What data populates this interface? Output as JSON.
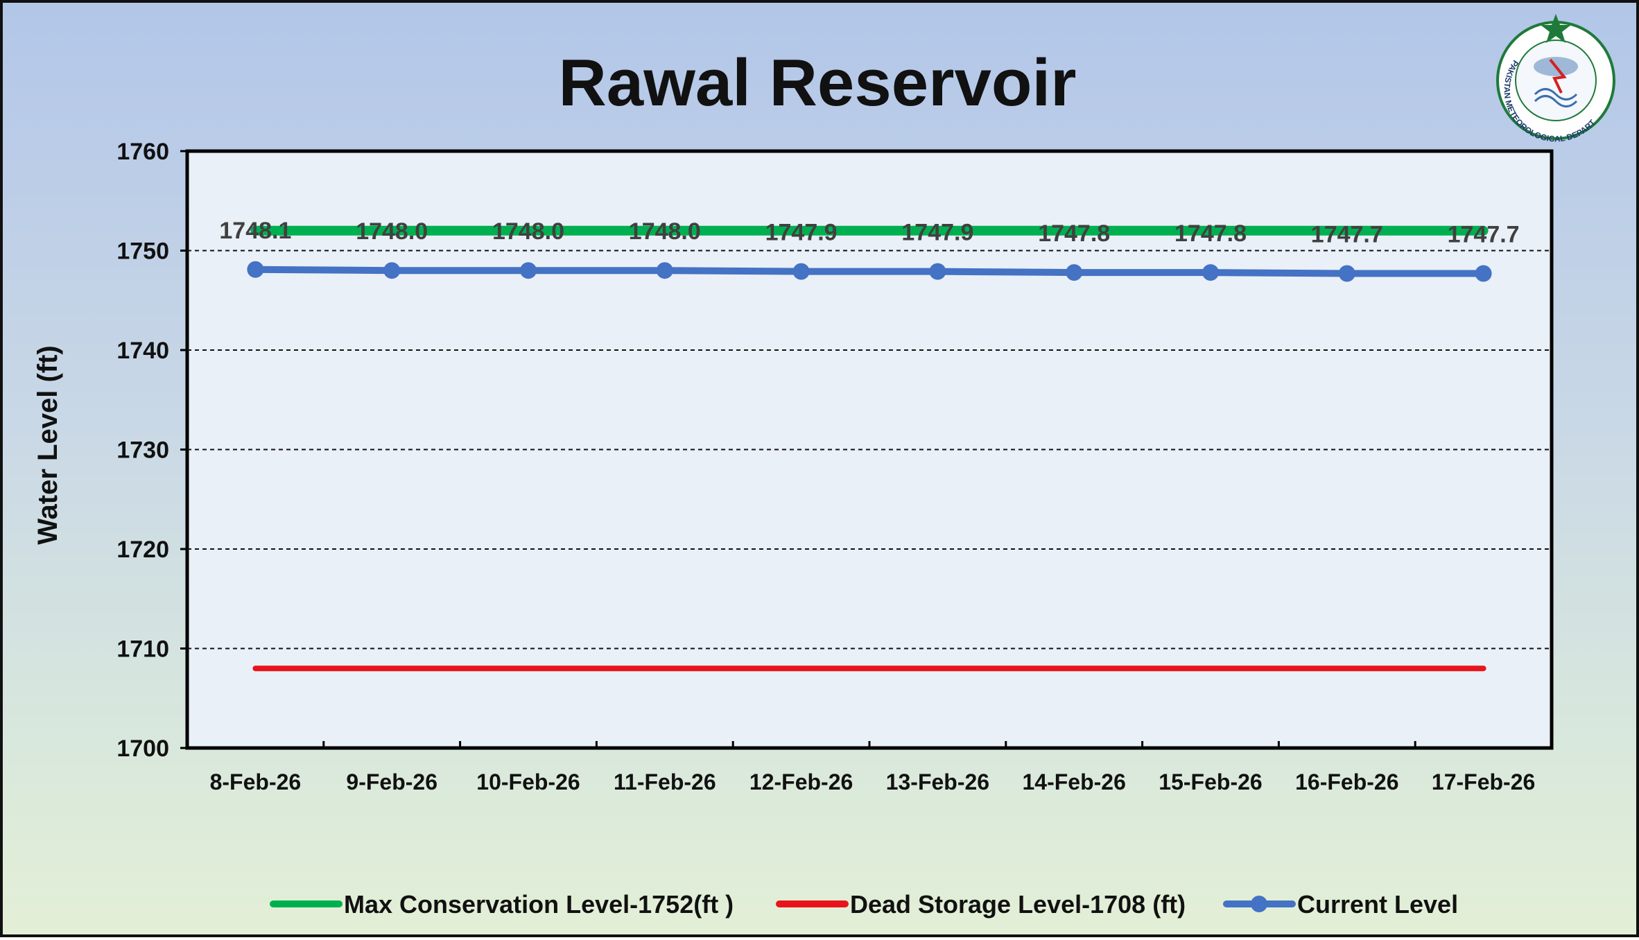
{
  "chart_data": {
    "type": "line",
    "title": "Rawal Reservoir",
    "ylabel": "Water Level (ft)",
    "xlabel": "",
    "ylim": [
      1700,
      1760
    ],
    "yticks": [
      1700,
      1710,
      1720,
      1730,
      1740,
      1750,
      1760
    ],
    "categories": [
      "8-Feb-26",
      "9-Feb-26",
      "10-Feb-26",
      "11-Feb-26",
      "12-Feb-26",
      "13-Feb-26",
      "14-Feb-26",
      "15-Feb-26",
      "16-Feb-26",
      "17-Feb-26"
    ],
    "grid": "horizontal dashed",
    "legend_position": "bottom",
    "series": [
      {
        "name": "Max Conservation Level-1752(ft )",
        "values": [
          1752,
          1752,
          1752,
          1752,
          1752,
          1752,
          1752,
          1752,
          1752,
          1752
        ],
        "color": "#00b050"
      },
      {
        "name": "Dead Storage Level-1708 (ft)",
        "values": [
          1708,
          1708,
          1708,
          1708,
          1708,
          1708,
          1708,
          1708,
          1708,
          1708
        ],
        "color": "#e8141b"
      },
      {
        "name": "Current Level",
        "values": [
          1748.1,
          1748.0,
          1748.0,
          1748.0,
          1747.9,
          1747.9,
          1747.8,
          1747.8,
          1747.7,
          1747.7
        ],
        "color": "#4472c4",
        "markers": "circle"
      }
    ],
    "data_labels": [
      "1748.1",
      "1748.0",
      "1748.0",
      "1748.0",
      "1747.9",
      "1747.9",
      "1747.8",
      "1747.8",
      "1747.7",
      "1747.7"
    ]
  },
  "logo": {
    "text": "PAKISTAN METEOROLOGICAL DEPARTMENT",
    "icon": "pmd-emblem-icon"
  }
}
